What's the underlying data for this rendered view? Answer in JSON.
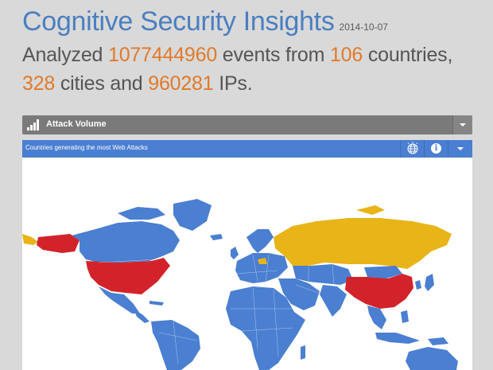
{
  "header": {
    "title": "Cognitive Security Insights",
    "date": "2014-10-07",
    "summary": {
      "t1": "Analyzed ",
      "events": "1077444960",
      "t2": " events from ",
      "countries": "106",
      "t3": " countries,",
      "cities": "328",
      "t4": " cities and ",
      "ips": "960281",
      "t5": " IPs."
    }
  },
  "attack_panel": {
    "title": "Attack Volume",
    "icon": "signal-bars-icon"
  },
  "map_panel": {
    "title": "Countries generating the most Web Attacks",
    "icons": [
      "globe-icon",
      "info-icon",
      "chevron-down-icon"
    ]
  },
  "colors": {
    "accent_blue": "#4a7fc1",
    "number_orange": "#e07a2a",
    "land_blue": "#4a7fd1",
    "highest_red": "#d3232a",
    "high_yellow": "#e8b418",
    "bar_gray": "#7a7a7a"
  },
  "map": {
    "highlighted_countries": [
      {
        "name": "United States",
        "level": "highest"
      },
      {
        "name": "China",
        "level": "highest"
      },
      {
        "name": "Russia",
        "level": "high"
      },
      {
        "name": "Greenland",
        "level": "high"
      }
    ]
  }
}
